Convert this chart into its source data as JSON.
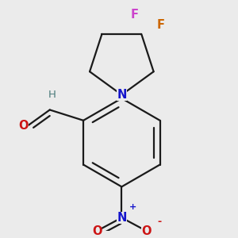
{
  "background_color": "#ebebeb",
  "bond_color": "#1a1a1a",
  "bond_width": 1.6,
  "atom_colors": {
    "N": "#1414cc",
    "O": "#cc1414",
    "F1": "#cc44cc",
    "F2": "#cc6600",
    "H": "#4a7a7a"
  },
  "font_size_atom": 10.5,
  "font_size_charge": 8,
  "font_size_H": 9.5
}
